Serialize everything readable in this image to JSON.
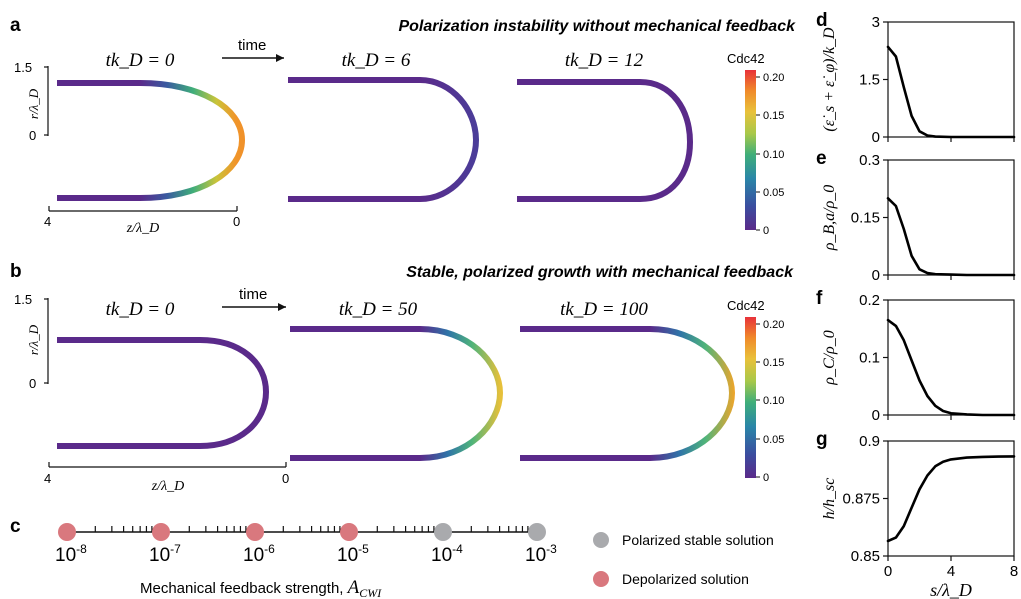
{
  "panel_a": {
    "letter": "a",
    "title": "Polarization instability without mechanical feedback",
    "time_label": "time",
    "snapshots": [
      "tk_D = 0",
      "tk_D = 6",
      "tk_D = 12"
    ],
    "y_axis_label": "r/λ_D",
    "y_ticks": [
      "1.5",
      "0"
    ],
    "x_axis_label": "z/λ_D",
    "x_ticks": [
      "4",
      "0"
    ],
    "colorbar_label": "Cdc42",
    "colorbar_ticks": [
      "0.20",
      "0.15",
      "0.10",
      "0.05",
      "0"
    ]
  },
  "panel_b": {
    "letter": "b",
    "title": "Stable, polarized growth with mechanical feedback",
    "time_label": "time",
    "snapshots": [
      "tk_D = 0",
      "tk_D = 50",
      "tk_D = 100"
    ],
    "y_axis_label": "r/λ_D",
    "y_ticks": [
      "1.5",
      "0"
    ],
    "x_axis_label": "z/λ_D",
    "x_ticks": [
      "4",
      "0"
    ],
    "colorbar_label": "Cdc42",
    "colorbar_ticks": [
      "0.20",
      "0.15",
      "0.10",
      "0.05",
      "0"
    ]
  },
  "panel_c": {
    "letter": "c",
    "axis_title": "Mechanical feedback strength, A_CWI",
    "exponents": [
      "-8",
      "-7",
      "-6",
      "-5",
      "-4",
      "-3"
    ],
    "legend": [
      "Polarized stable solution",
      "Depolarized solution"
    ],
    "colors": {
      "polarized": "#a9aaad",
      "depolarized": "#d9787e"
    }
  },
  "side_panels": [
    {
      "letter": "d",
      "ylabel": "(ε̇_s + ε̇_φ)/k_D",
      "yticks": [
        "3",
        "1.5",
        "0"
      ]
    },
    {
      "letter": "e",
      "ylabel": "ρ_B,a/ρ_0",
      "yticks": [
        "0.3",
        "0.15",
        "0"
      ]
    },
    {
      "letter": "f",
      "ylabel": "ρ_C/ρ_0",
      "yticks": [
        "0.2",
        "0.1",
        "0"
      ]
    },
    {
      "letter": "g",
      "ylabel": "h/h_sc",
      "yticks": [
        "0.9",
        "0.875",
        "0.85"
      ]
    }
  ],
  "side_xaxis": {
    "label": "s/λ_D",
    "ticks": [
      "0",
      "4",
      "8"
    ]
  },
  "chart_data": [
    {
      "type": "line",
      "panel": "d",
      "x": [
        0,
        0.5,
        1,
        1.5,
        2,
        2.5,
        3,
        4,
        5,
        6,
        7,
        8
      ],
      "series": [
        {
          "values": [
            2.35,
            2.1,
            1.3,
            0.55,
            0.15,
            0.04,
            0.01,
            0,
            0,
            0,
            0,
            0
          ]
        }
      ],
      "xlabel": "s/λ_D",
      "ylabel": "(ε̇_s + ε̇_φ)/k_D",
      "xlim": [
        0,
        8
      ],
      "ylim": [
        0,
        3
      ]
    },
    {
      "type": "line",
      "panel": "e",
      "x": [
        0,
        0.5,
        1,
        1.5,
        2,
        2.5,
        3,
        4,
        5,
        6,
        7,
        8
      ],
      "series": [
        {
          "values": [
            0.2,
            0.18,
            0.12,
            0.05,
            0.015,
            0.005,
            0.002,
            0.001,
            0,
            0,
            0,
            0
          ]
        }
      ],
      "xlabel": "s/λ_D",
      "ylabel": "ρ_B,a/ρ_0",
      "xlim": [
        0,
        8
      ],
      "ylim": [
        0,
        0.3
      ]
    },
    {
      "type": "line",
      "panel": "f",
      "x": [
        0,
        0.5,
        1,
        1.5,
        2,
        2.5,
        3,
        3.5,
        4,
        5,
        6,
        7,
        8
      ],
      "series": [
        {
          "values": [
            0.165,
            0.155,
            0.13,
            0.095,
            0.06,
            0.033,
            0.016,
            0.007,
            0.003,
            0.001,
            0,
            0,
            0
          ]
        }
      ],
      "xlabel": "s/λ_D",
      "ylabel": "ρ_C/ρ_0",
      "xlim": [
        0,
        8
      ],
      "ylim": [
        0,
        0.2
      ]
    },
    {
      "type": "line",
      "panel": "g",
      "x": [
        0,
        0.5,
        1,
        1.5,
        2,
        2.5,
        3,
        3.5,
        4,
        5,
        6,
        7,
        8
      ],
      "series": [
        {
          "values": [
            0.8565,
            0.858,
            0.863,
            0.871,
            0.879,
            0.885,
            0.889,
            0.891,
            0.892,
            0.8928,
            0.8931,
            0.8932,
            0.8933
          ]
        }
      ],
      "xlabel": "s/λ_D",
      "ylabel": "h/h_sc",
      "xlim": [
        0,
        8
      ],
      "ylim": [
        0.85,
        0.9
      ]
    },
    {
      "type": "scatter",
      "panel": "c",
      "x": [
        1e-08,
        1e-07,
        1e-06,
        1e-05,
        0.0001,
        0.001
      ],
      "categories": [
        "Depolarized solution",
        "Depolarized solution",
        "Depolarized solution",
        "Depolarized solution",
        "Polarized stable solution",
        "Polarized stable solution"
      ],
      "xlabel": "Mechanical feedback strength, A_CWI",
      "xscale": "log",
      "xlim": [
        1e-08,
        0.001
      ]
    },
    {
      "type": "heatmap",
      "panel": "colorbar",
      "label": "Cdc42",
      "range": [
        0,
        0.21
      ],
      "ticks": [
        0,
        0.05,
        0.1,
        0.15,
        0.2
      ],
      "colors": [
        "#5a2a8a",
        "#3a4ea0",
        "#2a86a8",
        "#3fae7a",
        "#a7c84a",
        "#e9c13a",
        "#f08a2a",
        "#e8323a"
      ]
    }
  ]
}
